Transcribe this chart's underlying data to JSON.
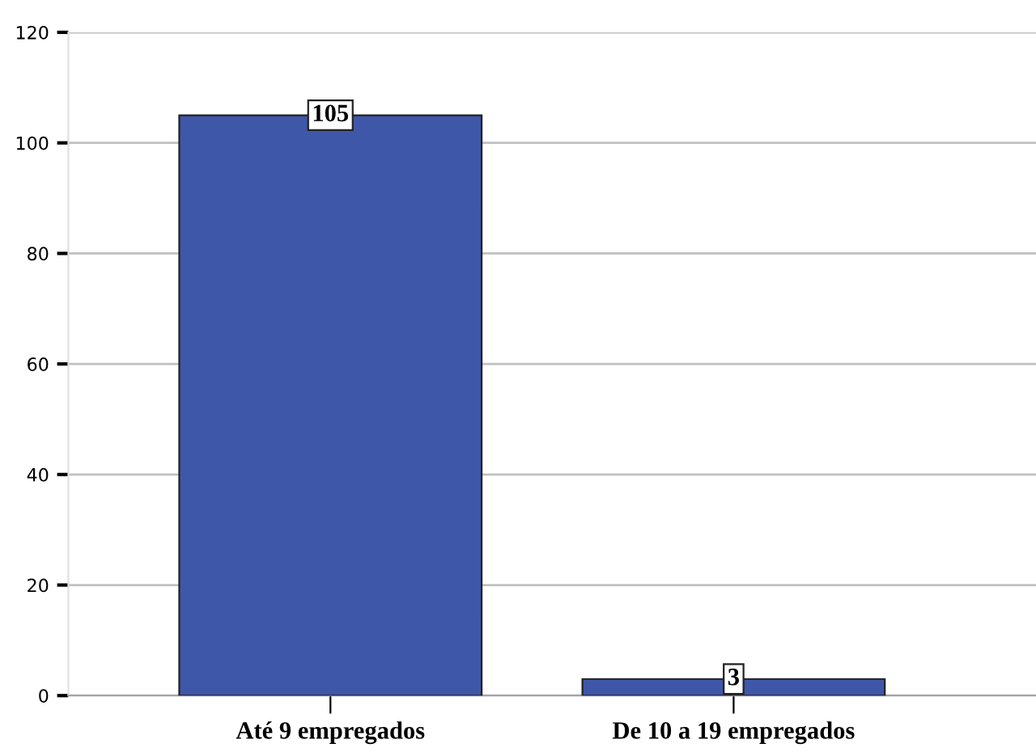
{
  "chart_data": {
    "type": "bar",
    "categories": [
      "Até 9 empregados",
      "De 10 a 19 empregados"
    ],
    "values": [
      105,
      3
    ],
    "color": "#3f57a9",
    "ylim": [
      0,
      120
    ],
    "yticks": [
      0,
      20,
      40,
      60,
      80,
      100,
      120
    ],
    "grid": "y",
    "data_labels": true
  }
}
